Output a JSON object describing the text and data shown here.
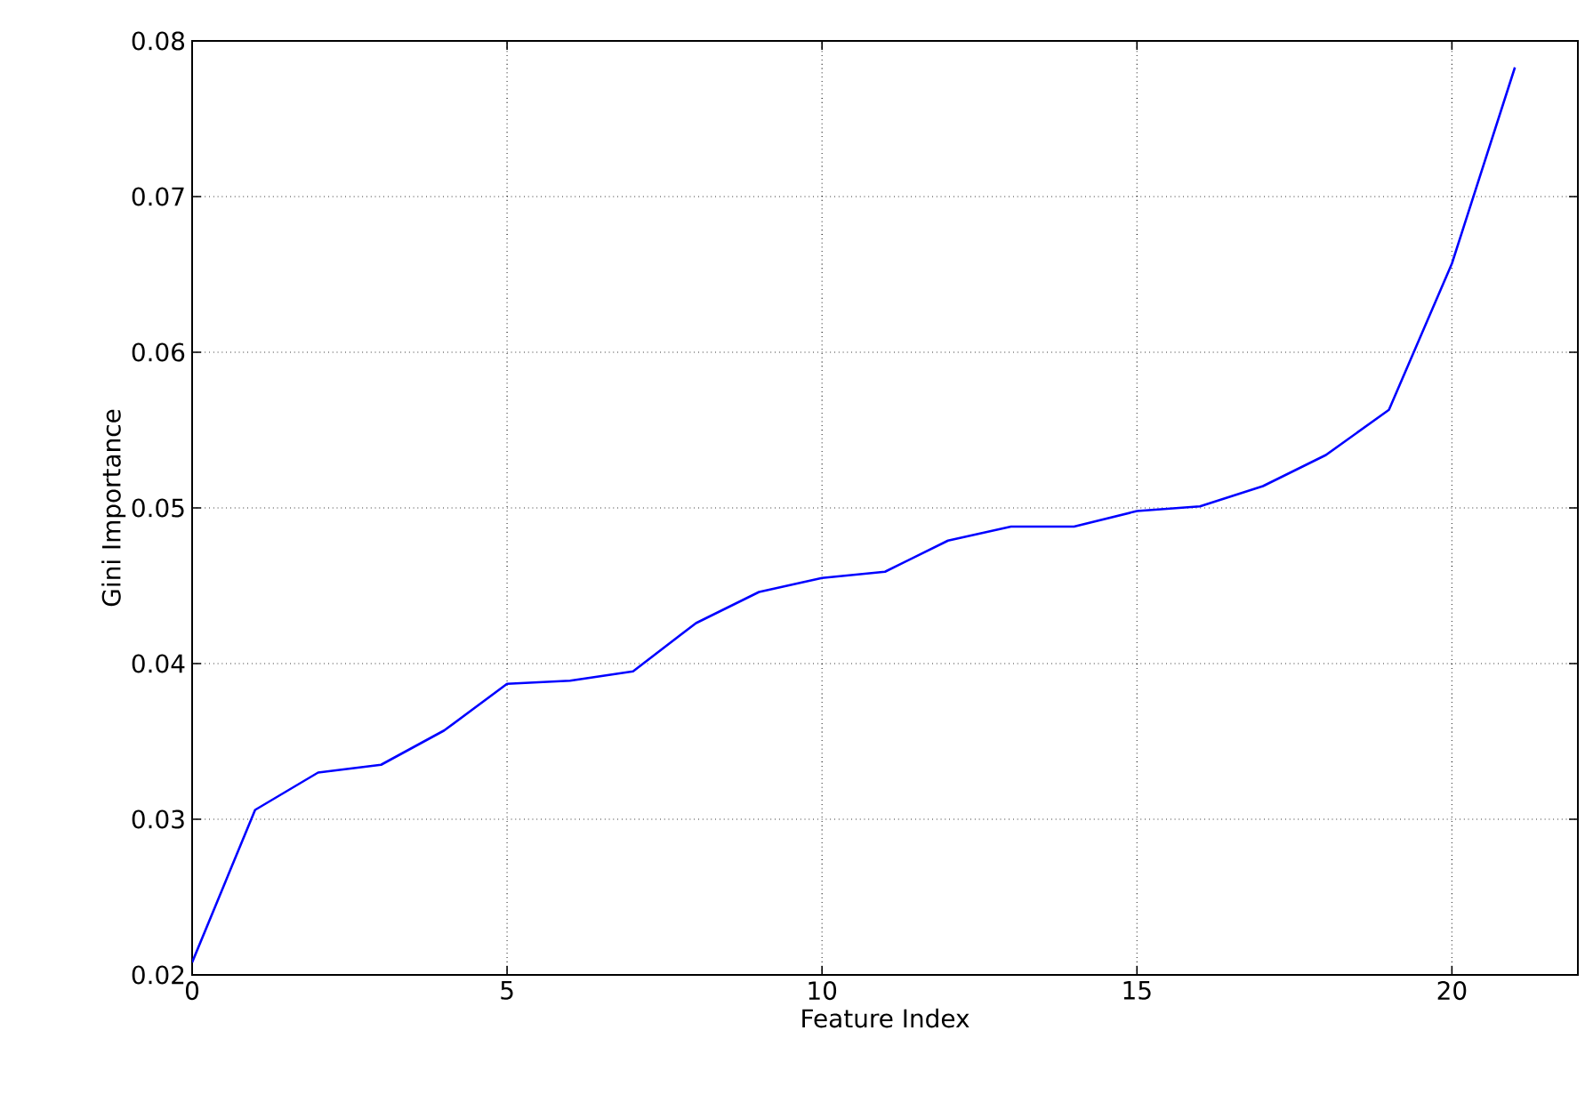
{
  "chart_data": {
    "type": "line",
    "xlabel": "Feature Index",
    "ylabel": "Gini Importance",
    "x": [
      0,
      1,
      2,
      3,
      4,
      5,
      6,
      7,
      8,
      9,
      10,
      11,
      12,
      13,
      14,
      15,
      16,
      17,
      18,
      19,
      20,
      21
    ],
    "series": [
      {
        "color": "#0000ff",
        "values": [
          0.0208,
          0.0306,
          0.033,
          0.0335,
          0.0357,
          0.0387,
          0.0389,
          0.0395,
          0.0426,
          0.0446,
          0.0455,
          0.0459,
          0.0479,
          0.0488,
          0.0488,
          0.0498,
          0.0501,
          0.0514,
          0.0534,
          0.0563,
          0.0657,
          0.0783
        ]
      }
    ],
    "xlim": [
      0,
      22
    ],
    "ylim": [
      0.02,
      0.08
    ],
    "xticks": [
      0,
      5,
      10,
      15,
      20
    ],
    "yticks": [
      0.02,
      0.03,
      0.04,
      0.05,
      0.06,
      0.07,
      0.08
    ],
    "grid": true
  }
}
